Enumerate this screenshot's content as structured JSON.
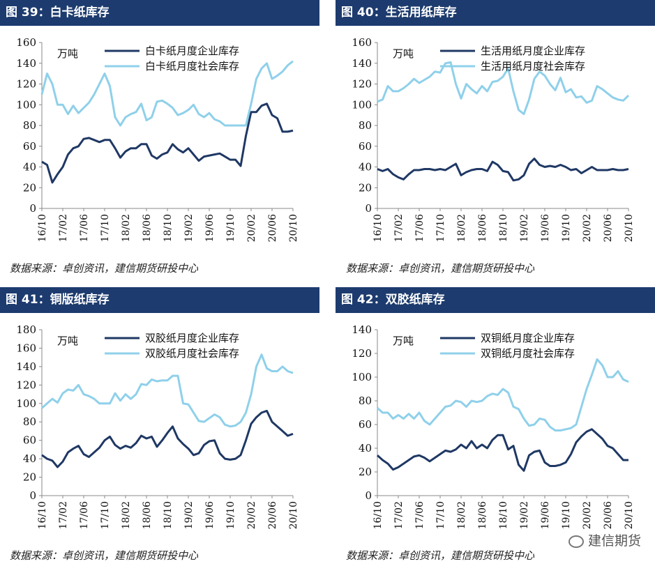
{
  "colors": {
    "header_bg": "#1d3b6e",
    "dark_series": "#1f3864",
    "light_series": "#8fd0ea"
  },
  "source_text": "数据来源：卓创资讯，建信期货研投中心",
  "watermark": "建信期货",
  "xticks": [
    "16/10",
    "17/02",
    "17/06",
    "17/10",
    "18/02",
    "18/06",
    "18/10",
    "19/02",
    "19/06",
    "19/10",
    "20/02",
    "20/06",
    "20/10"
  ],
  "chart_data": [
    {
      "type": "line",
      "title": "图 39：白卡纸库存",
      "unit": "万吨",
      "ylim": [
        0,
        160
      ],
      "yticks": [
        0,
        20,
        40,
        60,
        80,
        100,
        120,
        140,
        160
      ],
      "series": [
        {
          "name": "白卡纸月度企业库存",
          "color": "#1f3864",
          "values": [
            45,
            42,
            25,
            33,
            40,
            52,
            58,
            60,
            67,
            68,
            66,
            64,
            66,
            66,
            58,
            49,
            55,
            58,
            58,
            62,
            62,
            51,
            48,
            52,
            54,
            62,
            57,
            54,
            58,
            52,
            46,
            50,
            51,
            52,
            53,
            50,
            47,
            47,
            41,
            70,
            93,
            93,
            99,
            101,
            90,
            87,
            74,
            74,
            75
          ]
        },
        {
          "name": "白卡纸月度社会库存",
          "color": "#8fd0ea",
          "values": [
            110,
            130,
            120,
            100,
            100,
            91,
            99,
            92,
            97,
            102,
            110,
            120,
            130,
            118,
            88,
            80,
            88,
            91,
            93,
            101,
            85,
            88,
            103,
            104,
            101,
            97,
            90,
            92,
            95,
            100,
            91,
            88,
            92,
            86,
            84,
            80,
            80,
            80,
            80,
            80,
            101,
            125,
            135,
            140,
            125,
            128,
            132,
            138,
            142
          ]
        }
      ]
    },
    {
      "type": "line",
      "title": "图 40：生活用纸库存",
      "unit": "万吨",
      "ylim": [
        0,
        160
      ],
      "yticks": [
        0,
        20,
        40,
        60,
        80,
        100,
        120,
        140,
        160
      ],
      "series": [
        {
          "name": "生活用纸月度企业库存",
          "color": "#1f3864",
          "values": [
            38,
            36,
            38,
            33,
            30,
            28,
            33,
            37,
            37,
            38,
            38,
            37,
            38,
            37,
            40,
            43,
            32,
            35,
            37,
            38,
            38,
            36,
            45,
            42,
            36,
            35,
            27,
            28,
            32,
            43,
            48,
            42,
            40,
            41,
            40,
            42,
            40,
            37,
            38,
            34,
            37,
            40,
            37,
            37,
            37,
            38,
            37,
            37,
            38
          ]
        },
        {
          "name": "生活用纸月度社会库存",
          "color": "#8fd0ea",
          "values": [
            103,
            105,
            118,
            113,
            113,
            116,
            120,
            125,
            121,
            124,
            127,
            132,
            131,
            140,
            141,
            120,
            106,
            120,
            115,
            111,
            118,
            113,
            122,
            123,
            127,
            135,
            113,
            95,
            91,
            105,
            125,
            132,
            128,
            120,
            114,
            126,
            112,
            115,
            107,
            108,
            102,
            104,
            118,
            115,
            111,
            107,
            105,
            104,
            109
          ]
        }
      ]
    },
    {
      "type": "line",
      "title": "图 41：铜版纸库存",
      "unit": "万吨",
      "ylim": [
        0,
        180
      ],
      "yticks": [
        0,
        20,
        40,
        60,
        80,
        100,
        120,
        140,
        160,
        180
      ],
      "series": [
        {
          "name": "双胶纸月度企业库存",
          "color": "#1f3864",
          "values": [
            44,
            40,
            38,
            31,
            37,
            47,
            51,
            54,
            45,
            42,
            47,
            52,
            60,
            64,
            55,
            51,
            54,
            52,
            57,
            65,
            62,
            64,
            53,
            60,
            68,
            75,
            62,
            56,
            51,
            44,
            46,
            55,
            59,
            60,
            46,
            40,
            39,
            40,
            44,
            60,
            78,
            85,
            90,
            92,
            80,
            75,
            70,
            65,
            67
          ]
        },
        {
          "name": "双胶纸月度社会库存",
          "color": "#8fd0ea",
          "values": [
            95,
            100,
            105,
            101,
            111,
            115,
            114,
            120,
            110,
            108,
            105,
            100,
            100,
            100,
            111,
            103,
            110,
            105,
            110,
            121,
            120,
            126,
            124,
            125,
            125,
            130,
            130,
            100,
            99,
            90,
            81,
            80,
            84,
            88,
            85,
            77,
            75,
            76,
            80,
            90,
            110,
            140,
            153,
            138,
            135,
            135,
            140,
            135,
            133
          ]
        }
      ]
    },
    {
      "type": "line",
      "title": "图 42：双胶纸库存",
      "unit": "万吨",
      "ylim": [
        0,
        140
      ],
      "yticks": [
        0,
        20,
        40,
        60,
        80,
        100,
        120,
        140
      ],
      "series": [
        {
          "name": "双铜纸月度企业库存",
          "color": "#1f3864",
          "values": [
            34,
            30,
            27,
            22,
            24,
            27,
            30,
            33,
            34,
            32,
            29,
            32,
            35,
            38,
            37,
            39,
            43,
            40,
            46,
            40,
            43,
            40,
            47,
            51,
            51,
            39,
            42,
            26,
            21,
            34,
            37,
            38,
            28,
            25,
            25,
            26,
            28,
            35,
            45,
            50,
            54,
            56,
            52,
            48,
            42,
            40,
            35,
            30,
            30
          ]
        },
        {
          "name": "双铜纸月度社会库存",
          "color": "#8fd0ea",
          "values": [
            74,
            70,
            70,
            65,
            68,
            65,
            69,
            65,
            70,
            63,
            60,
            65,
            70,
            75,
            76,
            80,
            79,
            75,
            80,
            79,
            80,
            84,
            86,
            85,
            90,
            87,
            75,
            73,
            65,
            59,
            60,
            65,
            64,
            58,
            55,
            55,
            56,
            57,
            60,
            75,
            90,
            102,
            115,
            110,
            100,
            100,
            105,
            98,
            96
          ]
        }
      ]
    }
  ]
}
